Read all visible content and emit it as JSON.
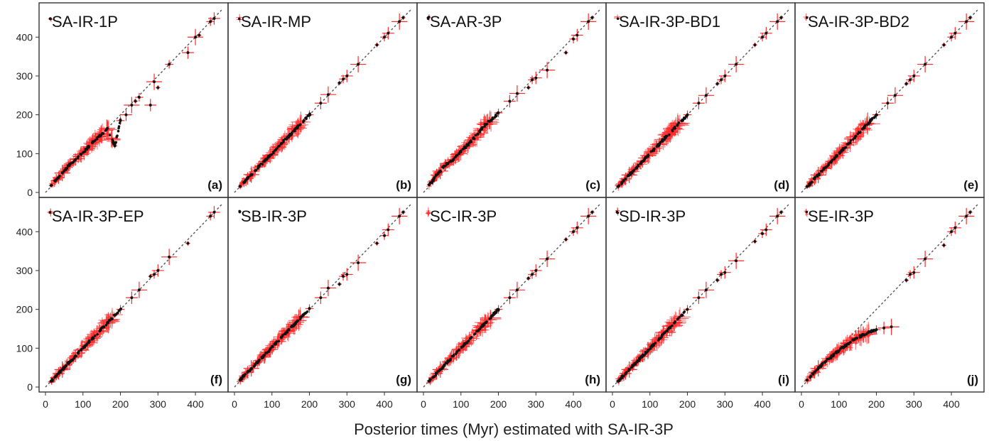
{
  "figure": {
    "xlabel": "Posterior times (Myr) estimated with SA-IR-3P",
    "axis_range": [
      0,
      470
    ],
    "x_ticks": [
      0,
      100,
      200,
      300,
      400
    ],
    "y_ticks": [
      0,
      100,
      200,
      300,
      400
    ],
    "colors": {
      "point": "#111111",
      "error_bar": "#ff2a2a",
      "diagonal": "#555555",
      "frame": "#333333"
    }
  },
  "chart_data": [
    {
      "type": "scatter",
      "title": "SA-IR-1P",
      "panel_label": "(a)",
      "x": [
        15,
        25,
        35,
        45,
        55,
        65,
        80,
        95,
        110,
        125,
        145,
        165,
        185,
        200,
        215,
        230,
        240,
        250,
        280,
        290,
        300,
        330,
        380,
        400,
        410,
        440,
        450
      ],
      "y": [
        18,
        30,
        38,
        50,
        62,
        72,
        85,
        98,
        112,
        128,
        145,
        165,
        120,
        185,
        200,
        225,
        235,
        245,
        225,
        285,
        270,
        330,
        360,
        400,
        405,
        440,
        448
      ],
      "ylim": [
        0,
        470
      ],
      "xlim": [
        0,
        470
      ]
    },
    {
      "type": "scatter",
      "title": "SA-IR-MP",
      "panel_label": "(b)",
      "x": [
        15,
        25,
        35,
        45,
        55,
        65,
        80,
        95,
        110,
        125,
        145,
        165,
        185,
        200,
        230,
        250,
        280,
        290,
        300,
        330,
        380,
        400,
        410,
        440,
        450
      ],
      "y": [
        16,
        26,
        36,
        46,
        56,
        66,
        80,
        96,
        110,
        126,
        145,
        165,
        185,
        200,
        230,
        252,
        282,
        292,
        300,
        330,
        380,
        400,
        410,
        440,
        450
      ],
      "ylim": [
        0,
        470
      ],
      "xlim": [
        0,
        470
      ]
    },
    {
      "type": "scatter",
      "title": "SA-AR-3P",
      "panel_label": "(c)",
      "x": [
        15,
        25,
        35,
        45,
        55,
        65,
        80,
        95,
        110,
        125,
        145,
        165,
        185,
        200,
        230,
        250,
        280,
        290,
        300,
        330,
        380,
        400,
        410,
        440,
        450
      ],
      "y": [
        20,
        30,
        45,
        55,
        68,
        75,
        85,
        100,
        115,
        130,
        150,
        175,
        190,
        205,
        235,
        255,
        270,
        290,
        295,
        315,
        360,
        395,
        405,
        440,
        450
      ],
      "ylim": [
        0,
        470
      ],
      "xlim": [
        0,
        470
      ]
    },
    {
      "type": "scatter",
      "title": "SA-IR-3P-BD1",
      "panel_label": "(d)",
      "x": [
        15,
        25,
        35,
        45,
        55,
        65,
        80,
        95,
        110,
        125,
        145,
        165,
        185,
        200,
        230,
        250,
        280,
        290,
        300,
        330,
        380,
        400,
        410,
        440,
        450
      ],
      "y": [
        15,
        25,
        35,
        45,
        55,
        65,
        80,
        95,
        110,
        125,
        145,
        165,
        185,
        200,
        230,
        250,
        280,
        290,
        300,
        330,
        380,
        400,
        410,
        440,
        450
      ],
      "ylim": [
        0,
        470
      ],
      "xlim": [
        0,
        470
      ]
    },
    {
      "type": "scatter",
      "title": "SA-IR-3P-BD2",
      "panel_label": "(e)",
      "x": [
        15,
        25,
        35,
        45,
        55,
        65,
        80,
        95,
        110,
        125,
        145,
        165,
        185,
        200,
        230,
        250,
        280,
        290,
        300,
        330,
        380,
        400,
        410,
        440,
        450
      ],
      "y": [
        15,
        25,
        35,
        45,
        55,
        65,
        80,
        95,
        110,
        125,
        145,
        165,
        185,
        200,
        230,
        250,
        280,
        290,
        300,
        330,
        380,
        400,
        410,
        440,
        450
      ],
      "ylim": [
        0,
        470
      ],
      "xlim": [
        0,
        470
      ]
    },
    {
      "type": "scatter",
      "title": "SA-IR-3P-EP",
      "panel_label": "(f)",
      "x": [
        15,
        25,
        35,
        45,
        55,
        65,
        80,
        95,
        110,
        125,
        145,
        165,
        185,
        200,
        230,
        250,
        280,
        290,
        300,
        330,
        380,
        440,
        450
      ],
      "y": [
        15,
        25,
        35,
        45,
        55,
        65,
        80,
        95,
        110,
        125,
        145,
        165,
        185,
        200,
        230,
        250,
        285,
        290,
        300,
        335,
        370,
        440,
        450
      ],
      "ylim": [
        0,
        470
      ],
      "xlim": [
        0,
        470
      ]
    },
    {
      "type": "scatter",
      "title": "SB-IR-3P",
      "panel_label": "(g)",
      "x": [
        15,
        25,
        35,
        45,
        55,
        65,
        80,
        95,
        110,
        125,
        145,
        165,
        185,
        200,
        230,
        250,
        280,
        290,
        300,
        330,
        380,
        400,
        410,
        440,
        450
      ],
      "y": [
        18,
        28,
        38,
        48,
        58,
        68,
        82,
        97,
        112,
        127,
        147,
        167,
        187,
        202,
        230,
        255,
        265,
        285,
        290,
        320,
        370,
        390,
        405,
        440,
        450
      ],
      "ylim": [
        0,
        470
      ],
      "xlim": [
        0,
        470
      ]
    },
    {
      "type": "scatter",
      "title": "SC-IR-3P",
      "panel_label": "(h)",
      "x": [
        15,
        25,
        35,
        45,
        55,
        65,
        80,
        95,
        110,
        125,
        145,
        165,
        185,
        200,
        230,
        250,
        280,
        290,
        300,
        330,
        380,
        400,
        410,
        440,
        450
      ],
      "y": [
        15,
        25,
        35,
        45,
        55,
        65,
        80,
        95,
        110,
        125,
        145,
        165,
        185,
        200,
        230,
        250,
        280,
        290,
        300,
        330,
        380,
        400,
        410,
        440,
        450
      ],
      "ylim": [
        0,
        470
      ],
      "xlim": [
        0,
        470
      ]
    },
    {
      "type": "scatter",
      "title": "SD-IR-3P",
      "panel_label": "(i)",
      "x": [
        15,
        25,
        35,
        45,
        55,
        65,
        80,
        95,
        110,
        125,
        145,
        165,
        185,
        200,
        230,
        250,
        280,
        290,
        300,
        330,
        380,
        400,
        410,
        440,
        450
      ],
      "y": [
        15,
        25,
        35,
        45,
        55,
        65,
        80,
        95,
        110,
        125,
        145,
        165,
        185,
        200,
        230,
        250,
        275,
        290,
        295,
        325,
        375,
        395,
        405,
        440,
        450
      ],
      "ylim": [
        0,
        470
      ],
      "xlim": [
        0,
        470
      ]
    },
    {
      "type": "scatter",
      "title": "SE-IR-3P",
      "panel_label": "(j)",
      "x": [
        15,
        25,
        35,
        45,
        55,
        65,
        80,
        95,
        110,
        125,
        145,
        165,
        185,
        200,
        220,
        240,
        280,
        290,
        300,
        330,
        380,
        400,
        410,
        440,
        450
      ],
      "y": [
        18,
        28,
        38,
        48,
        58,
        66,
        78,
        90,
        102,
        112,
        125,
        135,
        143,
        148,
        152,
        155,
        275,
        290,
        295,
        330,
        365,
        400,
        410,
        440,
        450
      ],
      "ylim": [
        0,
        470
      ],
      "xlim": [
        0,
        470
      ]
    }
  ]
}
